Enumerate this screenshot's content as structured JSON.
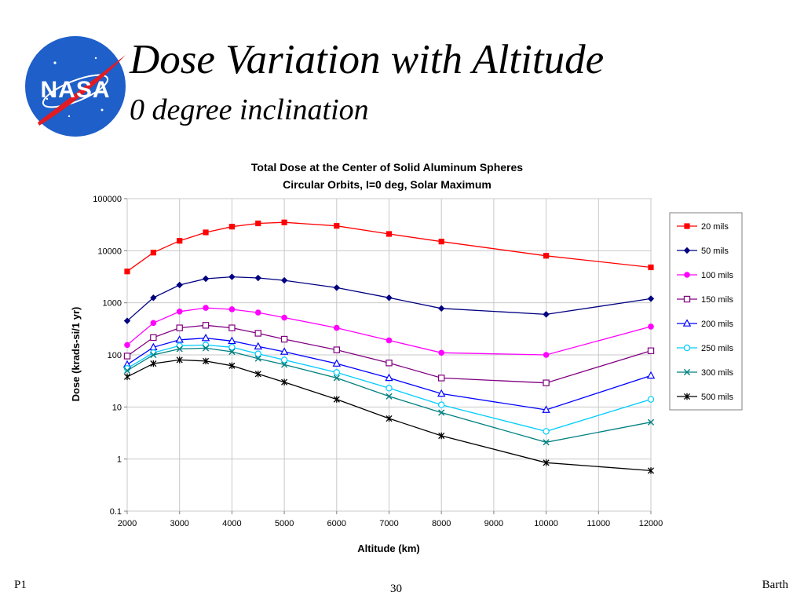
{
  "slide": {
    "title": "Dose Variation with Altitude",
    "subtitle": "0 degree inclination",
    "logo_text": "NASA",
    "footer_left": "P1",
    "page_number": "30",
    "footer_right": "Barth"
  },
  "chart_data": {
    "type": "line",
    "title": "Total Dose at the Center of Solid Aluminum Spheres",
    "subtitle": "Circular Orbits, I=0 deg, Solar Maximum",
    "xlabel": "Altitude (km)",
    "ylabel": "Dose (krads-si/1 yr)",
    "xlim": [
      2000,
      12000
    ],
    "ylim": [
      0.1,
      100000
    ],
    "y_scale": "log",
    "grid": true,
    "legend_position": "right",
    "x_ticks": [
      "2000",
      "3000",
      "4000",
      "5000",
      "6000",
      "7000",
      "8000",
      "9000",
      "10000",
      "11000",
      "12000"
    ],
    "y_ticks": [
      "0.1",
      "1",
      "10",
      "100",
      "1000",
      "10000",
      "100000"
    ],
    "x": [
      2000,
      2500,
      3000,
      3500,
      4000,
      4500,
      5000,
      6000,
      7000,
      8000,
      10000,
      12000
    ],
    "series": [
      {
        "name": "20 mils",
        "color": "#ff0000",
        "marker": "square-filled",
        "values": [
          4000,
          9200,
          15500,
          22500,
          29000,
          33500,
          35000,
          30000,
          21000,
          15000,
          8000,
          4800
        ]
      },
      {
        "name": "50 mils",
        "color": "#000080",
        "marker": "diamond-filled",
        "values": [
          450,
          1250,
          2200,
          2900,
          3150,
          3000,
          2700,
          1950,
          1250,
          780,
          600,
          1200
        ]
      },
      {
        "name": "100 mils",
        "color": "#ff00ff",
        "marker": "circle-filled",
        "values": [
          155,
          410,
          680,
          800,
          750,
          650,
          520,
          330,
          190,
          110,
          100,
          350
        ]
      },
      {
        "name": "150 mils",
        "color": "#800080",
        "marker": "square-open",
        "values": [
          95,
          215,
          330,
          370,
          330,
          260,
          200,
          125,
          70,
          36,
          29,
          120
        ]
      },
      {
        "name": "200 mils",
        "color": "#0000ff",
        "marker": "triangle-open",
        "values": [
          65,
          140,
          195,
          210,
          185,
          145,
          115,
          68,
          36,
          18,
          8.8,
          40
        ]
      },
      {
        "name": "250 mils",
        "color": "#00ccff",
        "marker": "circle-open",
        "values": [
          55,
          110,
          150,
          155,
          140,
          105,
          80,
          46,
          23,
          11,
          3.4,
          14
        ]
      },
      {
        "name": "300 mils",
        "color": "#008080",
        "marker": "x",
        "values": [
          50,
          100,
          130,
          135,
          115,
          85,
          65,
          36,
          16,
          7.8,
          2.1,
          5.1
        ]
      },
      {
        "name": "500 mils",
        "color": "#000000",
        "marker": "star",
        "values": [
          38,
          68,
          80,
          76,
          62,
          43,
          30,
          14,
          6,
          2.8,
          0.85,
          0.6
        ]
      }
    ]
  }
}
